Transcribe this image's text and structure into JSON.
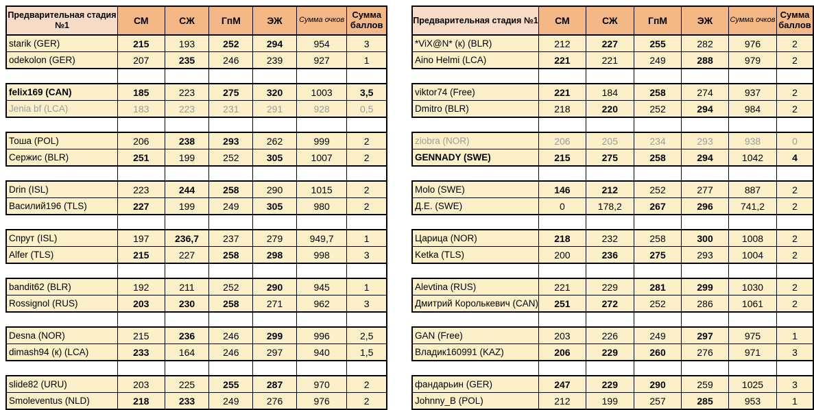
{
  "colors": {
    "header_fill": "#F4B886",
    "header_name_fill": "#F9DCC8",
    "row_fill": "#FCF0C8",
    "separator_fill": "#FFFFFF",
    "gray_text": "#9C9C9C",
    "border": "#000000"
  },
  "tables": [
    {
      "header": {
        "title": "Предварительная стадия №1",
        "cols": [
          "СМ",
          "СЖ",
          "ГпМ",
          "ЭЖ"
        ],
        "sum_points": "Сумма очков",
        "sum_score": "Сумма баллов"
      },
      "pairs": [
        [
          {
            "name": "starik (GER)",
            "style": "",
            "v": [
              "215",
              "193",
              "252",
              "294",
              "954",
              "3"
            ],
            "b": [
              1,
              0,
              1,
              1,
              0,
              0
            ]
          },
          {
            "name": "odekolon (GER)",
            "style": "",
            "v": [
              "207",
              "235",
              "246",
              "239",
              "927",
              "1"
            ],
            "b": [
              0,
              1,
              0,
              0,
              0,
              0
            ]
          }
        ],
        [
          {
            "name": "felix169 (CAN)",
            "style": "bold",
            "v": [
              "185",
              "223",
              "275",
              "320",
              "1003",
              "3,5"
            ],
            "b": [
              1,
              0,
              1,
              1,
              0,
              1
            ]
          },
          {
            "name": "Jenia bf (LCA)",
            "style": "gray",
            "v": [
              "183",
              "223",
              "231",
              "291",
              "928",
              "0,5"
            ],
            "b": [
              0,
              0,
              0,
              0,
              0,
              0
            ]
          }
        ],
        [
          {
            "name": "Тоша (POL)",
            "style": "",
            "v": [
              "206",
              "238",
              "293",
              "262",
              "999",
              "2"
            ],
            "b": [
              0,
              1,
              1,
              0,
              0,
              0
            ]
          },
          {
            "name": "Сержис (BLR)",
            "style": "",
            "v": [
              "251",
              "199",
              "252",
              "305",
              "1007",
              "2"
            ],
            "b": [
              1,
              0,
              0,
              1,
              0,
              0
            ]
          }
        ],
        [
          {
            "name": "Drin (ISL)",
            "style": "",
            "v": [
              "223",
              "244",
              "258",
              "290",
              "1015",
              "2"
            ],
            "b": [
              0,
              1,
              1,
              0,
              0,
              0
            ]
          },
          {
            "name": "Василий196 (TLS)",
            "style": "",
            "v": [
              "227",
              "199",
              "249",
              "305",
              "980",
              "2"
            ],
            "b": [
              1,
              0,
              0,
              1,
              0,
              0
            ]
          }
        ],
        [
          {
            "name": "Спрут (ISL)",
            "style": "",
            "v": [
              "197",
              "236,7",
              "237",
              "279",
              "949,7",
              "1"
            ],
            "b": [
              0,
              1,
              0,
              0,
              0,
              0
            ]
          },
          {
            "name": "Alfer (TLS)",
            "style": "",
            "v": [
              "215",
              "227",
              "258",
              "298",
              "998",
              "3"
            ],
            "b": [
              1,
              0,
              1,
              1,
              0,
              0
            ]
          }
        ],
        [
          {
            "name": "bandit62 (BLR)",
            "style": "",
            "v": [
              "192",
              "211",
              "252",
              "290",
              "945",
              "1"
            ],
            "b": [
              0,
              0,
              0,
              1,
              0,
              0
            ]
          },
          {
            "name": "Rossignol (RUS)",
            "style": "",
            "v": [
              "203",
              "230",
              "258",
              "271",
              "962",
              "3"
            ],
            "b": [
              1,
              1,
              1,
              0,
              0,
              0
            ]
          }
        ],
        [
          {
            "name": "Desna (NOR)",
            "style": "",
            "v": [
              "215",
              "236",
              "246",
              "299",
              "996",
              "2,5"
            ],
            "b": [
              0,
              1,
              0,
              1,
              0,
              0
            ]
          },
          {
            "name": "dimash94 (к) (LCA)",
            "style": "",
            "v": [
              "233",
              "164",
              "246",
              "297",
              "940",
              "1,5"
            ],
            "b": [
              1,
              0,
              0,
              0,
              0,
              0
            ]
          }
        ],
        [
          {
            "name": "slide82 (URU)",
            "style": "",
            "v": [
              "203",
              "225",
              "255",
              "287",
              "970",
              "2"
            ],
            "b": [
              0,
              0,
              1,
              1,
              0,
              0
            ]
          },
          {
            "name": "Smoleventus (NLD)",
            "style": "",
            "v": [
              "218",
              "233",
              "249",
              "276",
              "976",
              "2"
            ],
            "b": [
              1,
              1,
              0,
              0,
              0,
              0
            ]
          }
        ]
      ]
    },
    {
      "header": {
        "title": "Предварительная стадия №1",
        "cols": [
          "СМ",
          "СЖ",
          "ГпМ",
          "ЭЖ"
        ],
        "sum_points": "Сумма очков",
        "sum_score": "Сумма баллов"
      },
      "pairs": [
        [
          {
            "name": "*ViX@N* (к) (BLR)",
            "style": "",
            "v": [
              "212",
              "227",
              "255",
              "282",
              "976",
              "2"
            ],
            "b": [
              0,
              1,
              1,
              0,
              0,
              0
            ]
          },
          {
            "name": "Aino Helmi (LCA)",
            "style": "",
            "v": [
              "221",
              "221",
              "249",
              "288",
              "979",
              "2"
            ],
            "b": [
              1,
              0,
              0,
              1,
              0,
              0
            ]
          }
        ],
        [
          {
            "name": "viktor74 (Free)",
            "style": "",
            "v": [
              "221",
              "184",
              "258",
              "274",
              "937",
              "2"
            ],
            "b": [
              1,
              0,
              1,
              0,
              0,
              0
            ]
          },
          {
            "name": "Dmitro (BLR)",
            "style": "",
            "v": [
              "218",
              "220",
              "252",
              "294",
              "984",
              "2"
            ],
            "b": [
              0,
              1,
              0,
              1,
              0,
              0
            ]
          }
        ],
        [
          {
            "name": "ziobra (NOR)",
            "style": "gray",
            "v": [
              "206",
              "205",
              "234",
              "293",
              "938",
              "0"
            ],
            "b": [
              0,
              0,
              0,
              0,
              0,
              0
            ]
          },
          {
            "name": "GENNADY (SWE)",
            "style": "bold",
            "v": [
              "215",
              "275",
              "258",
              "294",
              "1042",
              "4"
            ],
            "b": [
              1,
              1,
              1,
              1,
              0,
              1
            ]
          }
        ],
        [
          {
            "name": "Molo (SWE)",
            "style": "",
            "v": [
              "146",
              "212",
              "252",
              "277",
              "887",
              "2"
            ],
            "b": [
              1,
              1,
              0,
              0,
              0,
              0
            ]
          },
          {
            "name": "Д.Е. (SWE)",
            "style": "",
            "v": [
              "0",
              "178,2",
              "267",
              "296",
              "741,2",
              "2"
            ],
            "b": [
              0,
              0,
              1,
              1,
              0,
              0
            ]
          }
        ],
        [
          {
            "name": "Царица (NOR)",
            "style": "",
            "v": [
              "218",
              "232",
              "258",
              "300",
              "1008",
              "2"
            ],
            "b": [
              1,
              0,
              0,
              1,
              0,
              0
            ]
          },
          {
            "name": "Ketka (TLS)",
            "style": "",
            "v": [
              "200",
              "236",
              "275",
              "293",
              "1004",
              "2"
            ],
            "b": [
              0,
              1,
              1,
              0,
              0,
              0
            ]
          }
        ],
        [
          {
            "name": "Alevtina (RUS)",
            "style": "",
            "v": [
              "221",
              "229",
              "281",
              "299",
              "1030",
              "2"
            ],
            "b": [
              0,
              0,
              1,
              1,
              0,
              0
            ]
          },
          {
            "name": "Дмитрий Королькевич (CAN)",
            "style": "small",
            "v": [
              "251",
              "272",
              "252",
              "286",
              "1061",
              "2"
            ],
            "b": [
              1,
              1,
              0,
              0,
              0,
              0
            ]
          }
        ],
        [
          {
            "name": "GAN (Free)",
            "style": "",
            "v": [
              "203",
              "226",
              "249",
              "297",
              "975",
              "1"
            ],
            "b": [
              0,
              0,
              0,
              1,
              0,
              0
            ]
          },
          {
            "name": "Владик160991 (KAZ)",
            "style": "",
            "v": [
              "206",
              "229",
              "260",
              "276",
              "971",
              "3"
            ],
            "b": [
              1,
              1,
              1,
              0,
              0,
              0
            ]
          }
        ],
        [
          {
            "name": "фандарьин (GER)",
            "style": "",
            "v": [
              "247",
              "229",
              "290",
              "259",
              "1025",
              "3"
            ],
            "b": [
              1,
              1,
              1,
              0,
              0,
              0
            ]
          },
          {
            "name": "Johnny_B (POL)",
            "style": "",
            "v": [
              "212",
              "199",
              "257",
              "285",
              "953",
              "1"
            ],
            "b": [
              0,
              0,
              0,
              1,
              0,
              0
            ]
          }
        ]
      ]
    }
  ]
}
